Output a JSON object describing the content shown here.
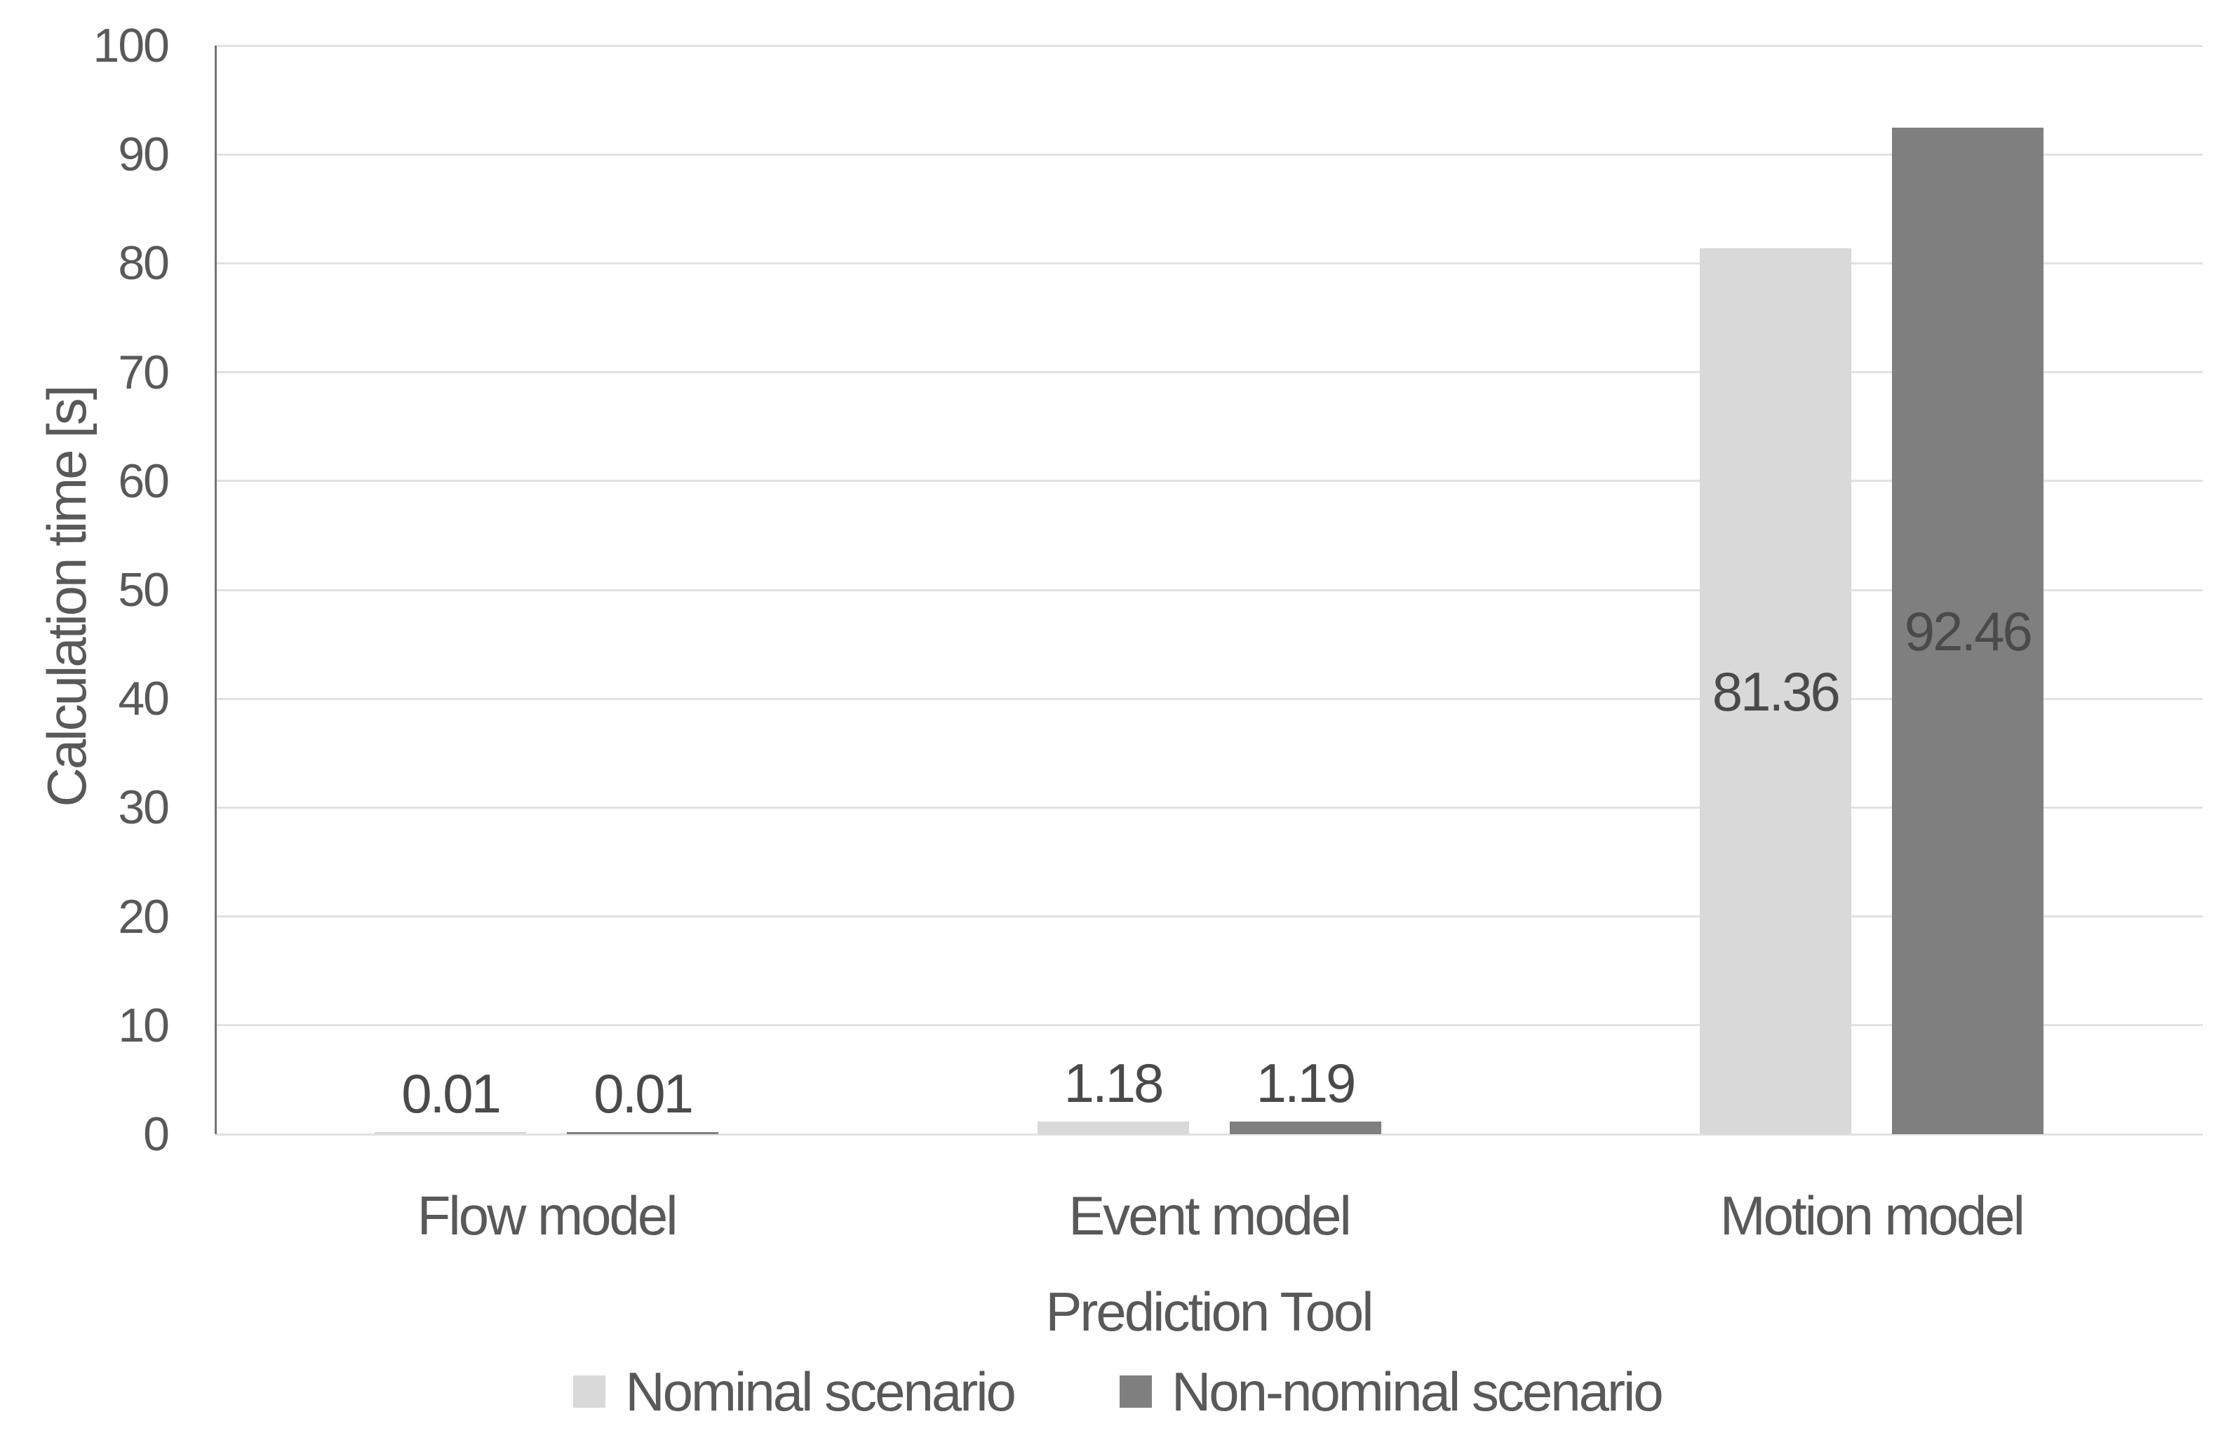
{
  "chart_data": {
    "type": "bar",
    "title": "",
    "xlabel": "Prediction Tool",
    "ylabel": "Calculation time [s]",
    "categories": [
      "Flow model",
      "Event model",
      "Motion model"
    ],
    "series": [
      {
        "name": "Nominal scenario",
        "color": "#d9d9d9",
        "values": [
          0.01,
          1.18,
          81.36
        ],
        "labels": [
          "0.01",
          "1.18",
          "81.36"
        ]
      },
      {
        "name": "Non-nominal scenario",
        "color": "#7f7f7f",
        "values": [
          0.01,
          1.19,
          92.46
        ],
        "labels": [
          "0.01",
          "1.19",
          "92.46"
        ]
      }
    ],
    "ylim": [
      0,
      100
    ],
    "ytick_step": 10,
    "yticks": [
      "100",
      "90",
      "80",
      "70",
      "60",
      "50",
      "40",
      "30",
      "20",
      "10",
      "0"
    ],
    "grid": true,
    "legend_position": "bottom",
    "data_label_color": "#4a4a4a",
    "axis_text_color": "#595959",
    "gridline_color": "#e2e2e2",
    "axis_line_color": "#767676"
  }
}
